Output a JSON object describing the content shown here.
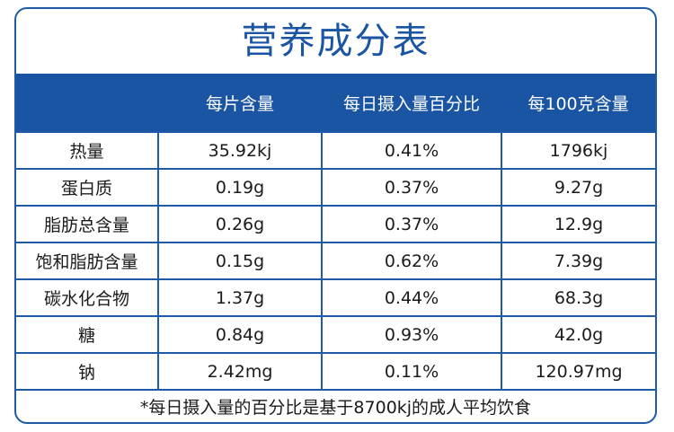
{
  "title": "营养成分表",
  "columns": [
    "",
    "每片含量",
    "每日摄入量百分比",
    "每100克含量"
  ],
  "rows": [
    {
      "name": "热量",
      "per_tablet": "35.92kj",
      "daily_percent": "0.41%",
      "per_100g": "1796kj"
    },
    {
      "name": "蛋白质",
      "per_tablet": "0.19g",
      "daily_percent": "0.37%",
      "per_100g": "9.27g"
    },
    {
      "name": "脂肪总含量",
      "per_tablet": "0.26g",
      "daily_percent": "0.37%",
      "per_100g": "12.9g"
    },
    {
      "name": "饱和脂肪含量",
      "per_tablet": "0.15g",
      "daily_percent": "0.62%",
      "per_100g": "7.39g"
    },
    {
      "name": "碳水化合物",
      "per_tablet": "1.37g",
      "daily_percent": "0.44%",
      "per_100g": "68.3g"
    },
    {
      "name": "糖",
      "per_tablet": "0.84g",
      "daily_percent": "0.93%",
      "per_100g": "42.0g"
    },
    {
      "name": "钠",
      "per_tablet": "2.42mg",
      "daily_percent": "0.11%",
      "per_100g": "120.97mg"
    }
  ],
  "footnote": "*每日摄入量的百分比是基于8700kj的成人平均饮食",
  "colors": {
    "accent": "#1a55a3",
    "border": "#1e5aa6",
    "header_text": "#ffffff",
    "body_text": "#1a1a1a"
  }
}
